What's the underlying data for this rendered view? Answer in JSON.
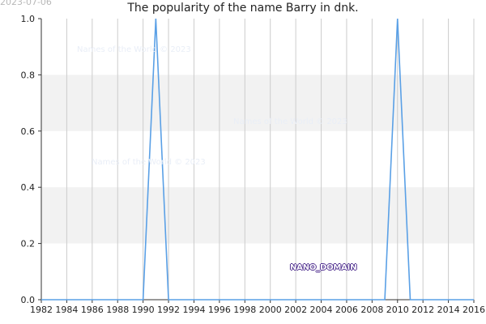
{
  "date_stamp": "2023-07-06",
  "watermark_text": "Names of the World © 2023",
  "domain_label": "NANO_DOMAIN",
  "colors": {
    "line": "#5aa0e6",
    "band": "#f2f2f2",
    "grid": "#cccccc",
    "axis": "#333333"
  },
  "chart_data": {
    "type": "line",
    "title": "The popularity of the name Barry in dnk.",
    "xlabel": "",
    "ylabel": "",
    "xlim": [
      1982,
      2016
    ],
    "ylim": [
      0,
      1
    ],
    "grid": true,
    "x_ticks": [
      1982,
      1984,
      1986,
      1988,
      1990,
      1992,
      1994,
      1996,
      1998,
      2000,
      2002,
      2004,
      2006,
      2008,
      2010,
      2012,
      2014,
      2016
    ],
    "y_ticks": [
      0.0,
      0.2,
      0.4,
      0.6,
      0.8,
      1.0
    ],
    "series": [
      {
        "name": "",
        "x": [
          1982,
          1990,
          1991,
          1992,
          2009,
          2010,
          2011,
          2016
        ],
        "y": [
          0,
          0,
          1,
          0,
          0,
          1,
          0,
          0
        ]
      }
    ]
  }
}
